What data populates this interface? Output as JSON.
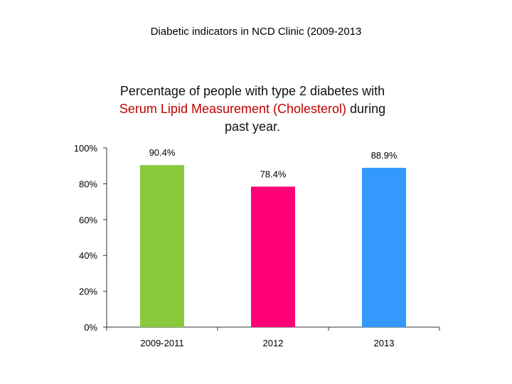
{
  "page": {
    "heading": "Diabetic indicators in NCD Clinic (2009-2013"
  },
  "chart_data": {
    "type": "bar",
    "title": {
      "line1": "Percentage of people with type 2 diabetes with",
      "line2_highlight": "Serum Lipid Measurement (Cholesterol)",
      "line2_rest": " during",
      "line3": "past year."
    },
    "categories": [
      "2009-2011",
      "2012",
      "2013"
    ],
    "values": [
      90.4,
      78.4,
      88.9
    ],
    "data_labels": [
      "90.4%",
      "78.4%",
      "88.9%"
    ],
    "bar_colors": [
      "#88c93c",
      "#ff0077",
      "#3399ff"
    ],
    "highlight_color": "#c00000",
    "ylim": [
      0,
      100
    ],
    "y_ticks": [
      0,
      20,
      40,
      60,
      80,
      100
    ],
    "y_tick_labels": [
      "0%",
      "20%",
      "40%",
      "60%",
      "80%",
      "100%"
    ],
    "grid": false,
    "legend": "none"
  }
}
